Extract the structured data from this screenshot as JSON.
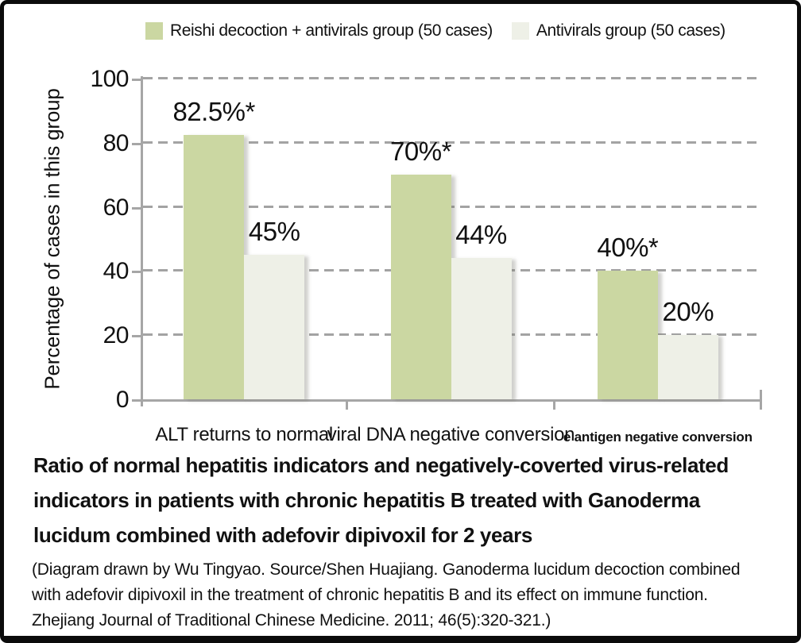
{
  "figure": {
    "background": "#ffffff",
    "frame_color": "#0b0b0b"
  },
  "legend": {
    "items": [
      {
        "label": "Reishi decoction + antivirals group (50 cases)",
        "color": "#cbd7a2"
      },
      {
        "label": "Antivirals group (50 cases)",
        "color": "#eef0e7"
      }
    ]
  },
  "chart_data": {
    "type": "bar",
    "title": "Ratio of normal hepatitis indicators and negatively-coverted virus-related indicators in patients with chronic hepatitis B treated with Ganoderma lucidum combined with adefovir dipivoxil for 2 years",
    "categories": [
      "ALT returns to normal",
      "viral DNA negative conversion",
      "e antigen negative conversion"
    ],
    "series": [
      {
        "name": "Reishi decoction + antivirals group (50 cases)",
        "color": "#cbd7a2",
        "values": [
          82.5,
          70,
          40
        ],
        "value_labels": [
          "82.5%*",
          "70%*",
          "40%*"
        ]
      },
      {
        "name": "Antivirals group (50 cases)",
        "color": "#eef0e7",
        "values": [
          45,
          44,
          20
        ],
        "value_labels": [
          "45%",
          "44%",
          "20%"
        ]
      }
    ],
    "xlabel": "",
    "ylabel": "Percentage of cases in this group",
    "ylim": [
      0,
      100
    ],
    "yticks": [
      0,
      20,
      40,
      60,
      80,
      100
    ],
    "grid": "horizontal-dashed",
    "legend_position": "top"
  },
  "caption": {
    "title": "Ratio of normal hepatitis indicators and negatively-coverted  virus-related\nindicators in patients with chronic hepatitis B treated with Ganoderma\nlucidum combined with adefovir dipivoxil for 2 years",
    "citation": "(Diagram drawn by Wu Tingyao. Source/Shen Huajiang. Ganoderma lucidum decoction combined\nwith adefovir dipivoxil in the treatment of chronic hepatitis B and its effect on immune function.\nZhejiang Journal of Traditional Chinese Medicine. 2011; 46(5):320-321.)"
  },
  "colors": {
    "axis": "#a6a6a6",
    "gridline": "#a3a3a3",
    "text": "#111111"
  }
}
